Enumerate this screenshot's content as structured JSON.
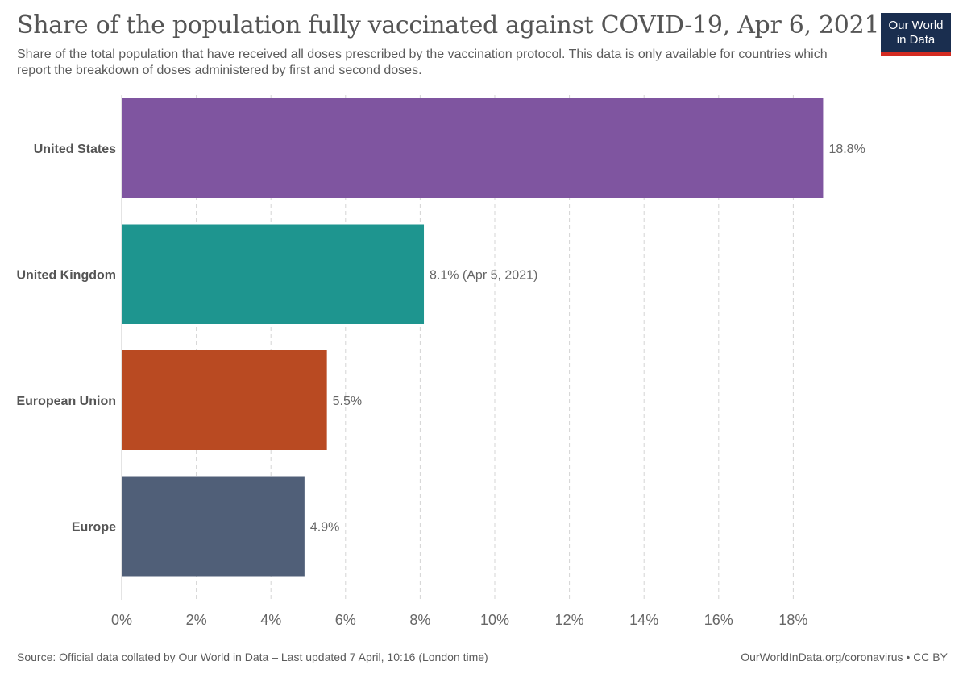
{
  "header": {
    "title": "Share of the population fully vaccinated against COVID-19, Apr 6, 2021",
    "subtitle": "Share of the total population that have received all doses prescribed by the vaccination protocol. This data is only available for countries which report the breakdown of doses administered by first and second doses.",
    "logo_line1": "Our World",
    "logo_line2": "in Data"
  },
  "chart_data": {
    "type": "bar",
    "orientation": "horizontal",
    "categories": [
      "United States",
      "United Kingdom",
      "European Union",
      "Europe"
    ],
    "values": [
      18.8,
      8.1,
      5.5,
      4.9
    ],
    "value_labels": [
      "18.8%",
      "8.1% (Apr 5, 2021)",
      "5.5%",
      "4.9%"
    ],
    "colors": [
      "#7f55a0",
      "#1e958f",
      "#b94a22",
      "#505f78"
    ],
    "xlim": [
      0,
      20
    ],
    "xticks": [
      0,
      2,
      4,
      6,
      8,
      10,
      12,
      14,
      16,
      18
    ],
    "xtick_labels": [
      "0%",
      "2%",
      "4%",
      "6%",
      "8%",
      "10%",
      "12%",
      "14%",
      "16%",
      "18%"
    ],
    "grid": true,
    "xlabel": "",
    "ylabel": ""
  },
  "footer": {
    "source": "Source: Official data collated by Our World in Data – Last updated 7 April, 10:16 (London time)",
    "link": "OurWorldInData.org/coronavirus • CC BY"
  }
}
